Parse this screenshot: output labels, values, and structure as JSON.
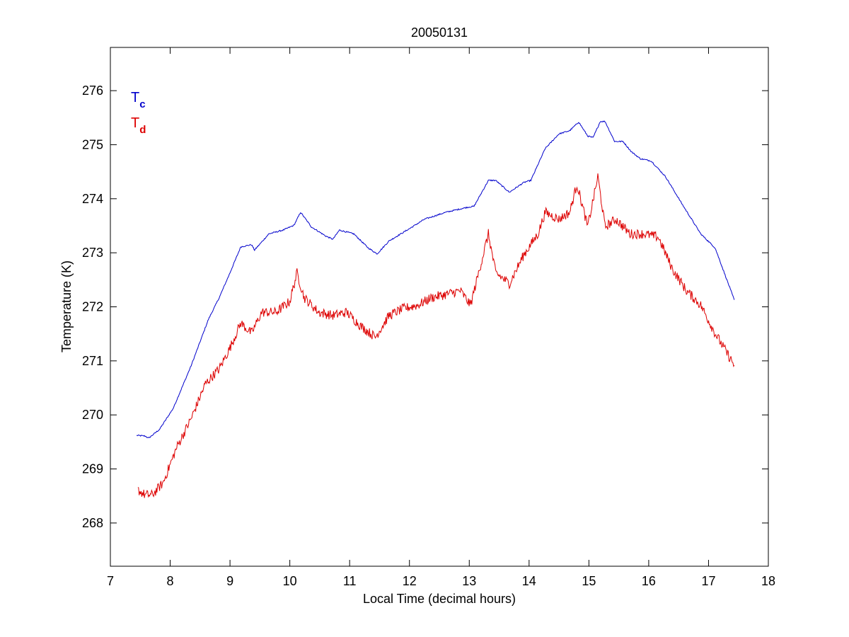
{
  "chart_data": {
    "type": "line",
    "title": "20050131",
    "xlabel": "Local Time (decimal hours)",
    "ylabel": "Temperature (K)",
    "xlim": [
      7,
      18
    ],
    "ylim": [
      267.2,
      276.8
    ],
    "xticks": [
      7,
      8,
      9,
      10,
      11,
      12,
      13,
      14,
      15,
      16,
      17,
      18
    ],
    "yticks": [
      268,
      269,
      270,
      271,
      272,
      273,
      274,
      275,
      276
    ],
    "grid": false,
    "legend_placement": "top-left",
    "series": [
      {
        "name": "Tc",
        "legend_main": "T",
        "legend_sub": "c",
        "color": "#0000cc",
        "points": [
          [
            7.44,
            269.62
          ],
          [
            7.58,
            269.61
          ],
          [
            7.64,
            269.57
          ],
          [
            7.82,
            269.73
          ],
          [
            8.05,
            270.12
          ],
          [
            8.35,
            270.91
          ],
          [
            8.64,
            271.77
          ],
          [
            8.82,
            272.17
          ],
          [
            9.0,
            272.63
          ],
          [
            9.18,
            273.11
          ],
          [
            9.36,
            273.15
          ],
          [
            9.41,
            273.05
          ],
          [
            9.65,
            273.35
          ],
          [
            9.89,
            273.42
          ],
          [
            10.07,
            273.51
          ],
          [
            10.18,
            273.75
          ],
          [
            10.36,
            273.48
          ],
          [
            10.6,
            273.31
          ],
          [
            10.72,
            273.25
          ],
          [
            10.83,
            273.42
          ],
          [
            11.07,
            273.35
          ],
          [
            11.31,
            273.09
          ],
          [
            11.46,
            272.98
          ],
          [
            11.66,
            273.22
          ],
          [
            12.02,
            273.46
          ],
          [
            12.25,
            273.62
          ],
          [
            12.61,
            273.75
          ],
          [
            12.96,
            273.84
          ],
          [
            13.08,
            273.86
          ],
          [
            13.32,
            274.34
          ],
          [
            13.44,
            274.34
          ],
          [
            13.67,
            274.12
          ],
          [
            13.91,
            274.3
          ],
          [
            14.03,
            274.34
          ],
          [
            14.27,
            274.93
          ],
          [
            14.5,
            275.2
          ],
          [
            14.68,
            275.26
          ],
          [
            14.83,
            275.42
          ],
          [
            14.98,
            275.16
          ],
          [
            15.07,
            275.13
          ],
          [
            15.19,
            275.43
          ],
          [
            15.27,
            275.43
          ],
          [
            15.43,
            275.06
          ],
          [
            15.57,
            275.06
          ],
          [
            15.71,
            274.87
          ],
          [
            15.86,
            274.74
          ],
          [
            16.04,
            274.7
          ],
          [
            16.28,
            274.41
          ],
          [
            16.57,
            273.88
          ],
          [
            16.87,
            273.35
          ],
          [
            17.11,
            273.09
          ],
          [
            17.43,
            272.13
          ]
        ]
      },
      {
        "name": "Td",
        "legend_main": "T",
        "legend_sub": "d",
        "color": "#dd0000",
        "points": [
          [
            7.46,
            268.61
          ],
          [
            7.58,
            268.52
          ],
          [
            7.7,
            268.52
          ],
          [
            7.88,
            268.74
          ],
          [
            8.11,
            269.4
          ],
          [
            8.35,
            269.93
          ],
          [
            8.59,
            270.58
          ],
          [
            8.82,
            270.85
          ],
          [
            9.0,
            271.24
          ],
          [
            9.18,
            271.7
          ],
          [
            9.36,
            271.51
          ],
          [
            9.53,
            271.9
          ],
          [
            9.77,
            271.9
          ],
          [
            10.0,
            272.1
          ],
          [
            10.12,
            272.63
          ],
          [
            10.24,
            272.17
          ],
          [
            10.48,
            271.9
          ],
          [
            10.72,
            271.84
          ],
          [
            10.95,
            271.9
          ],
          [
            11.19,
            271.64
          ],
          [
            11.43,
            271.44
          ],
          [
            11.66,
            271.84
          ],
          [
            11.9,
            271.97
          ],
          [
            12.14,
            272.03
          ],
          [
            12.37,
            272.17
          ],
          [
            12.61,
            272.23
          ],
          [
            12.85,
            272.3
          ],
          [
            13.02,
            272.03
          ],
          [
            13.2,
            272.82
          ],
          [
            13.32,
            273.35
          ],
          [
            13.44,
            272.63
          ],
          [
            13.67,
            272.43
          ],
          [
            13.91,
            272.96
          ],
          [
            14.15,
            273.35
          ],
          [
            14.27,
            273.75
          ],
          [
            14.5,
            273.62
          ],
          [
            14.68,
            273.75
          ],
          [
            14.8,
            274.27
          ],
          [
            14.98,
            273.48
          ],
          [
            15.15,
            274.41
          ],
          [
            15.27,
            273.48
          ],
          [
            15.45,
            273.62
          ],
          [
            15.69,
            273.35
          ],
          [
            15.92,
            273.35
          ],
          [
            16.16,
            273.29
          ],
          [
            16.4,
            272.69
          ],
          [
            16.63,
            272.3
          ],
          [
            16.87,
            272.03
          ],
          [
            17.11,
            271.51
          ],
          [
            17.43,
            270.92
          ]
        ]
      }
    ]
  }
}
